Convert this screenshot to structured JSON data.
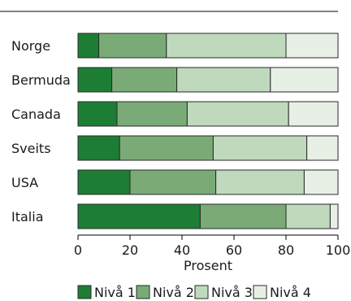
{
  "chart_data": {
    "type": "bar",
    "orientation": "horizontal",
    "stacked": true,
    "categories": [
      "Norge",
      "Bermuda",
      "Canada",
      "Sveits",
      "USA",
      "Italia"
    ],
    "series": [
      {
        "name": "Nivå 1",
        "color": "#1e7d34",
        "values": [
          8,
          13,
          15,
          16,
          20,
          47
        ]
      },
      {
        "name": "Nivå 2",
        "color": "#7aab77",
        "values": [
          26,
          25,
          27,
          36,
          33,
          33
        ]
      },
      {
        "name": "Nivå 3",
        "color": "#bfd9bc",
        "values": [
          46,
          36,
          39,
          36,
          34,
          17
        ]
      },
      {
        "name": "Nivå 4",
        "color": "#e8f0e6",
        "values": [
          20,
          26,
          19,
          12,
          13,
          3
        ]
      }
    ],
    "xlabel": "Prosent",
    "xlim": [
      0,
      100
    ],
    "xticks": [
      0,
      20,
      40,
      60,
      80,
      100
    ],
    "grid": false,
    "legend_position": "bottom"
  }
}
